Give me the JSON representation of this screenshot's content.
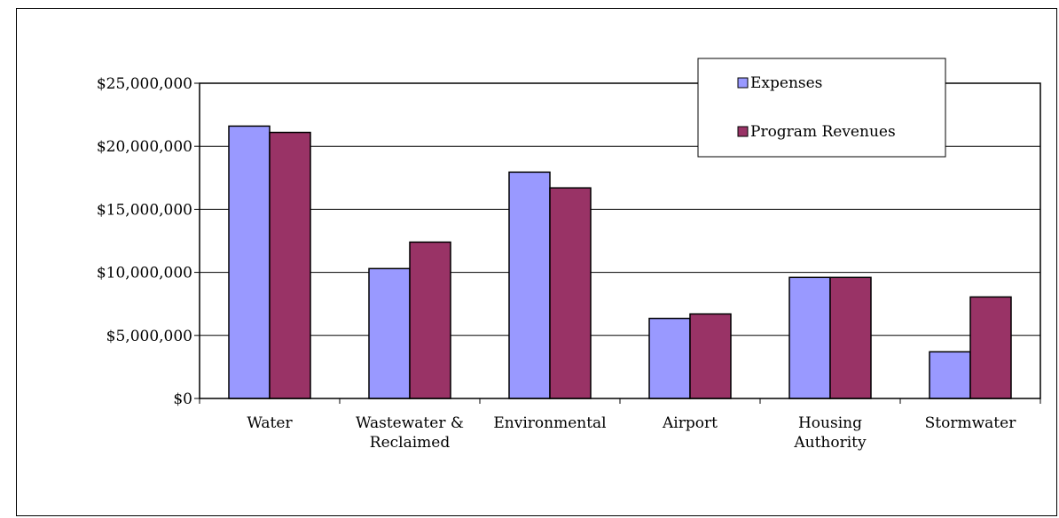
{
  "chart_data": {
    "type": "bar",
    "title": "",
    "xlabel": "",
    "ylabel": "",
    "categories": [
      [
        "Water"
      ],
      [
        "Wastewater &",
        "Reclaimed"
      ],
      [
        "Environmental"
      ],
      [
        "Airport"
      ],
      [
        "Housing",
        "Authority"
      ],
      [
        "Stormwater"
      ]
    ],
    "series": [
      {
        "name": "Expenses",
        "color": "#9999ff",
        "values": [
          21600000,
          10300000,
          17950000,
          6350000,
          9600000,
          3700000
        ]
      },
      {
        "name": "Program Revenues",
        "color": "#993366",
        "values": [
          21100000,
          12400000,
          16700000,
          6700000,
          9600000,
          8050000
        ]
      }
    ],
    "ylim": [
      0,
      25000000
    ],
    "ytick_values": [
      0,
      5000000,
      10000000,
      15000000,
      20000000,
      25000000
    ],
    "ytick_labels": [
      "$0",
      "$5,000,000",
      "$10,000,000",
      "$15,000,000",
      "$20,000,000",
      "$25,000,000"
    ],
    "grid": true,
    "legend_position": "top-right"
  }
}
